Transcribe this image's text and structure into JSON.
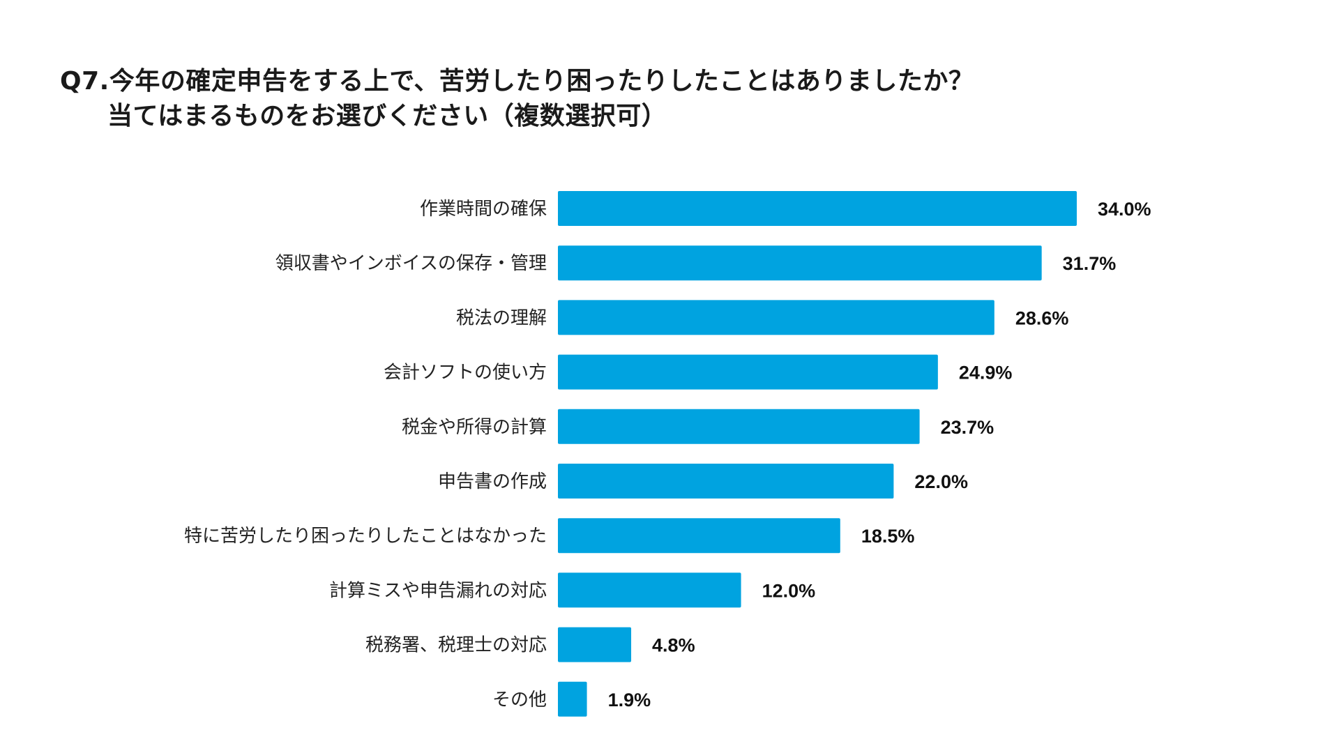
{
  "header": {
    "title_line1": "Q7.今年の確定申告をする上で、苦労したり困ったりしたことはありましたか？",
    "title_line2": "当てはまるものをお選びください（複数選択可）"
  },
  "colors": {
    "bar": "#00A3E0"
  },
  "chart_data": {
    "type": "bar",
    "orientation": "horizontal",
    "title": "Q7.今年の確定申告をする上で、苦労したり困ったりしたことはありましたか？ 当てはまるものをお選びください（複数選択可）",
    "categories": [
      "作業時間の確保",
      "領収書やインボイスの保存・管理",
      "税法の理解",
      "会計ソフトの使い方",
      "税金や所得の計算",
      "申告書の作成",
      "特に苦労したり困ったりしたことはなかった",
      "計算ミスや申告漏れの対応",
      "税務署、税理士の対応",
      "その他"
    ],
    "values": [
      34.0,
      31.7,
      28.6,
      24.9,
      23.7,
      22.0,
      18.5,
      12.0,
      4.8,
      1.9
    ],
    "value_labels": [
      "34.0%",
      "31.7%",
      "28.6%",
      "24.9%",
      "23.7%",
      "22.0%",
      "18.5%",
      "12.0%",
      "4.8%",
      "1.9%"
    ],
    "unit": "%",
    "xlim": [
      0,
      34.0
    ],
    "xlabel": "",
    "ylabel": "",
    "grid": false,
    "legend": "none"
  }
}
